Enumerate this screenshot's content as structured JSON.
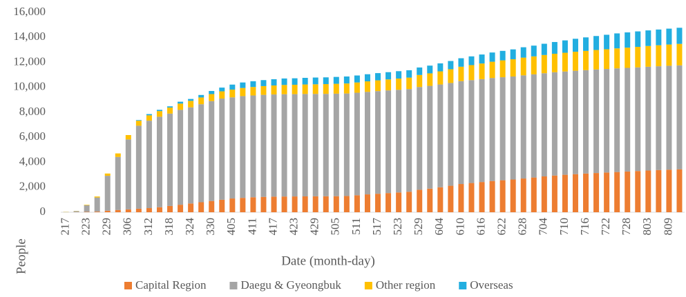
{
  "chart_data": {
    "type": "stacked_bar",
    "x_label": "Date (month-day)",
    "y_label": "People",
    "categories": [
      "217",
      null,
      "223",
      null,
      "229",
      null,
      "306",
      null,
      "312",
      null,
      "318",
      null,
      "324",
      null,
      "330",
      null,
      "405",
      null,
      "411",
      null,
      "417",
      null,
      "423",
      null,
      "429",
      null,
      "505",
      null,
      "511",
      null,
      "517",
      null,
      "523",
      null,
      "529",
      null,
      "604",
      null,
      "610",
      null,
      "616",
      null,
      "622",
      null,
      "628",
      null,
      "704",
      null,
      "710",
      null,
      "716",
      null,
      "722",
      null,
      "728",
      null,
      "803",
      null,
      "809",
      null
    ],
    "series": [
      {
        "name": "Capital Region",
        "color": "#ed7d31",
        "values": [
          10,
          15,
          30,
          50,
          120,
          180,
          230,
          280,
          330,
          400,
          500,
          600,
          700,
          800,
          900,
          1000,
          1100,
          1150,
          1200,
          1230,
          1250,
          1260,
          1265,
          1270,
          1275,
          1280,
          1285,
          1300,
          1360,
          1430,
          1480,
          1535,
          1585,
          1640,
          1800,
          1890,
          2000,
          2120,
          2260,
          2340,
          2420,
          2500,
          2560,
          2620,
          2700,
          2780,
          2870,
          2940,
          3000,
          3050,
          3100,
          3140,
          3180,
          3220,
          3260,
          3300,
          3340,
          3380,
          3410,
          3440
        ]
      },
      {
        "name": "Daegu & Gyeongbuk",
        "color": "#a5a5a5",
        "values": [
          0,
          70,
          530,
          1130,
          2800,
          4250,
          5600,
          6650,
          7000,
          7250,
          7400,
          7600,
          7700,
          7850,
          8000,
          8100,
          8100,
          8150,
          8150,
          8170,
          8180,
          8190,
          8190,
          8200,
          8200,
          8200,
          8210,
          8210,
          8210,
          8210,
          8220,
          8220,
          8220,
          8220,
          8230,
          8230,
          8230,
          8230,
          8240,
          8240,
          8240,
          8250,
          8250,
          8250,
          8260,
          8260,
          8260,
          8270,
          8270,
          8280,
          8280,
          8290,
          8290,
          8300,
          8300,
          8300,
          8310,
          8310,
          8320,
          8320
        ]
      },
      {
        "name": "Other region",
        "color": "#ffc000",
        "values": [
          15,
          15,
          40,
          80,
          180,
          280,
          350,
          400,
          430,
          450,
          480,
          500,
          520,
          540,
          560,
          580,
          620,
          650,
          680,
          700,
          720,
          740,
          750,
          760,
          770,
          780,
          790,
          800,
          820,
          840,
          860,
          880,
          900,
          920,
          960,
          1000,
          1050,
          1100,
          1150,
          1200,
          1250,
          1300,
          1350,
          1380,
          1420,
          1440,
          1460,
          1480,
          1500,
          1520,
          1540,
          1560,
          1580,
          1600,
          1620,
          1640,
          1660,
          1680,
          1700,
          1720
        ]
      },
      {
        "name": "Overseas",
        "color": "#22aee0",
        "values": [
          5,
          4,
          2,
          1,
          0,
          0,
          0,
          50,
          100,
          100,
          100,
          150,
          150,
          200,
          250,
          300,
          400,
          440,
          460,
          480,
          500,
          520,
          520,
          530,
          540,
          540,
          550,
          560,
          560,
          570,
          580,
          580,
          590,
          590,
          600,
          620,
          640,
          660,
          680,
          700,
          720,
          740,
          760,
          790,
          830,
          860,
          900,
          940,
          990,
          1040,
          1080,
          1120,
          1160,
          1200,
          1220,
          1240,
          1250,
          1260,
          1270,
          1290
        ]
      }
    ],
    "ylim": [
      0,
      16000
    ],
    "yticks": [
      0,
      {
        "value": 2000,
        "label": "2,000"
      },
      {
        "value": 4000,
        "label": "4,000"
      },
      {
        "value": 6000,
        "label": "6,000"
      },
      {
        "value": 8000,
        "label": "8,000"
      },
      {
        "value": 10000,
        "label": "10,000"
      },
      {
        "value": 12000,
        "label": "12,000"
      },
      {
        "value": 14000,
        "label": "14,000"
      },
      {
        "value": 16000,
        "label": "16,000"
      }
    ],
    "grid": false,
    "legend": "bottom"
  }
}
